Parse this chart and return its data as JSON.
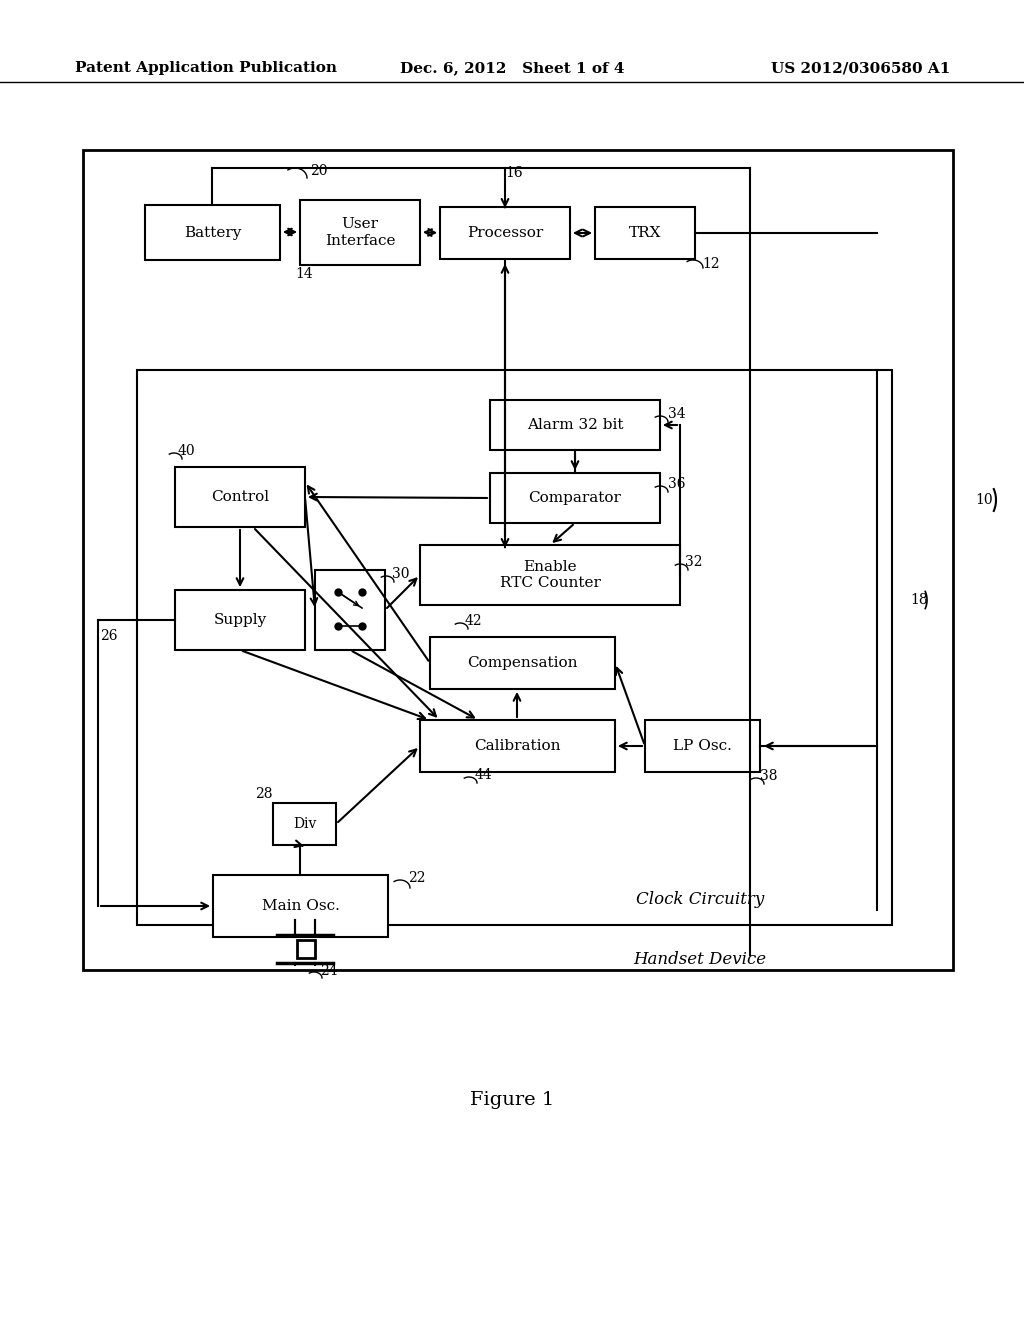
{
  "bg_color": "#ffffff",
  "header_left": "Patent Application Publication",
  "header_mid": "Dec. 6, 2012   Sheet 1 of 4",
  "header_right": "US 2012/0306580 A1",
  "figure_label": "Figure 1"
}
